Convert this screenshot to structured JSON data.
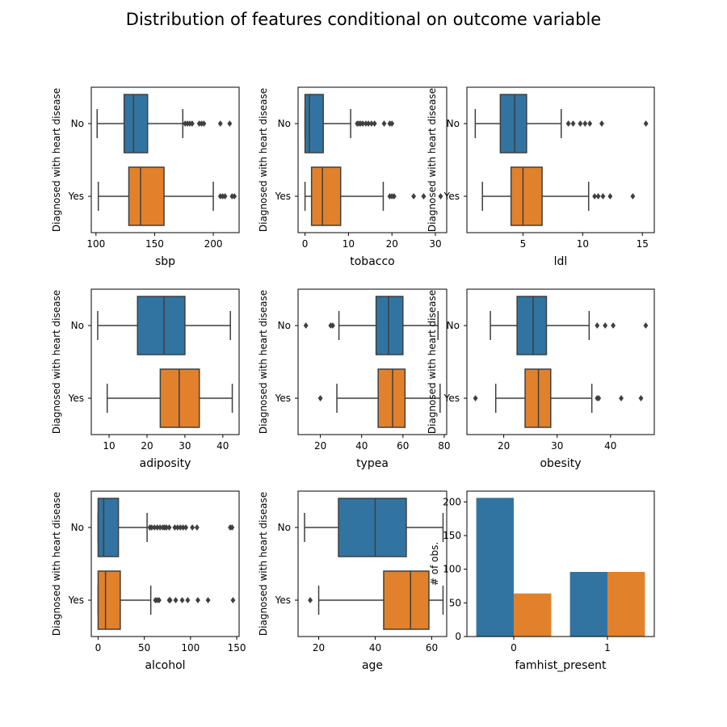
{
  "figure": {
    "title": "Distribution of features conditional on outcome variable",
    "colors": {
      "No": "#3274a1",
      "Yes": "#e1812c",
      "line": "#3f3f3f"
    }
  },
  "chart_data": [
    {
      "type": "box",
      "xlabel": "sbp",
      "ylabel": "Diagnosed with heart disease",
      "categories": [
        "No",
        "Yes"
      ],
      "xlim": [
        96,
        222
      ],
      "xticks": [
        100,
        150,
        200
      ],
      "boxes": [
        {
          "group": "No",
          "whislo": 101,
          "q1": 124,
          "med": 132,
          "q3": 144,
          "whishi": 174,
          "fliers": [
            176,
            178,
            180,
            182,
            188,
            190,
            192,
            206,
            214
          ]
        },
        {
          "group": "Yes",
          "whislo": 102,
          "q1": 128,
          "med": 138,
          "q3": 158,
          "whishi": 200,
          "fliers": [
            206,
            208,
            210,
            216,
            218
          ]
        }
      ]
    },
    {
      "type": "box",
      "xlabel": "tobacco",
      "ylabel": "Diagnosed with heart disease",
      "categories": [
        "No",
        "Yes"
      ],
      "xlim": [
        -1.6,
        32.6
      ],
      "xticks": [
        0,
        10,
        20,
        30
      ],
      "boxes": [
        {
          "group": "No",
          "whislo": 0,
          "q1": 0,
          "med": 1,
          "q3": 4.2,
          "whishi": 10.5,
          "fliers": [
            12,
            12.4,
            12.8,
            13.3,
            14,
            14.6,
            15.3,
            16,
            18.2,
            19.5,
            20
          ]
        },
        {
          "group": "Yes",
          "whislo": 0,
          "q1": 1.5,
          "med": 4,
          "q3": 8.2,
          "whishi": 18,
          "fliers": [
            19.5,
            20,
            20.5,
            25,
            27.3,
            31.2
          ]
        }
      ]
    },
    {
      "type": "box",
      "xlabel": "ldl",
      "ylabel": "Diagnosed with heart disease",
      "categories": [
        "No",
        "Yes"
      ],
      "xlim": [
        0.3,
        16.0
      ],
      "xticks": [
        5,
        10,
        15
      ],
      "boxes": [
        {
          "group": "No",
          "whislo": 1,
          "q1": 3.1,
          "med": 4.3,
          "q3": 5.3,
          "whishi": 8.2,
          "fliers": [
            8.8,
            9.2,
            9.8,
            10.2,
            10.6,
            11.6,
            15.3
          ]
        },
        {
          "group": "Yes",
          "whislo": 1.6,
          "q1": 4,
          "med": 5,
          "q3": 6.6,
          "whishi": 10.5,
          "fliers": [
            11,
            11.3,
            11.7,
            12.3,
            14.2
          ]
        }
      ]
    },
    {
      "type": "box",
      "xlabel": "adiposity",
      "ylabel": "Diagnosed with heart disease",
      "categories": [
        "No",
        "Yes"
      ],
      "xlim": [
        5.3,
        44.3
      ],
      "xticks": [
        10,
        20,
        30,
        40
      ],
      "boxes": [
        {
          "group": "No",
          "whislo": 7,
          "q1": 17.5,
          "med": 24.5,
          "q3": 30,
          "whishi": 42,
          "fliers": []
        },
        {
          "group": "Yes",
          "whislo": 9.5,
          "q1": 23.5,
          "med": 28.5,
          "q3": 33.8,
          "whishi": 42.5,
          "fliers": []
        }
      ]
    },
    {
      "type": "box",
      "xlabel": "typea",
      "ylabel": "Diagnosed with heart disease",
      "categories": [
        "No",
        "Yes"
      ],
      "xlim": [
        9.2,
        81.2
      ],
      "xticks": [
        20,
        40,
        60,
        80
      ],
      "boxes": [
        {
          "group": "No",
          "whislo": 29,
          "q1": 47,
          "med": 53,
          "q3": 60,
          "whishi": 77,
          "fliers": [
            13,
            25,
            26
          ]
        },
        {
          "group": "Yes",
          "whislo": 28,
          "q1": 48,
          "med": 55,
          "q3": 61,
          "whishi": 78,
          "fliers": [
            20
          ]
        }
      ]
    },
    {
      "type": "box",
      "xlabel": "obesity",
      "ylabel": "Diagnosed with heart disease",
      "categories": [
        "No",
        "Yes"
      ],
      "xlim": [
        13.1,
        48.2
      ],
      "xticks": [
        20,
        30,
        40
      ],
      "boxes": [
        {
          "group": "No",
          "whislo": 17.5,
          "q1": 22.5,
          "med": 25.5,
          "q3": 28,
          "whishi": 36,
          "fliers": [
            37.5,
            39,
            40.5,
            46.6
          ]
        },
        {
          "group": "Yes",
          "whislo": 18.5,
          "q1": 24,
          "med": 26.5,
          "q3": 28.8,
          "whishi": 36.5,
          "fliers": [
            14.7,
            37.5,
            37.8,
            42,
            45.7
          ]
        }
      ]
    },
    {
      "type": "box",
      "xlabel": "alcohol",
      "ylabel": "Diagnosed with heart disease",
      "categories": [
        "No",
        "Yes"
      ],
      "xlim": [
        -7.4,
        152.6
      ],
      "xticks": [
        0,
        50,
        100,
        150
      ],
      "boxes": [
        {
          "group": "No",
          "whislo": 0,
          "q1": 0,
          "med": 6,
          "q3": 22,
          "whishi": 53,
          "fliers": [
            56,
            58,
            61,
            64,
            67,
            70,
            72,
            74,
            77,
            83,
            86,
            89,
            92,
            95,
            102,
            107,
            143,
            145
          ]
        },
        {
          "group": "Yes",
          "whislo": 0,
          "q1": 0,
          "med": 8,
          "q3": 24,
          "whishi": 57,
          "fliers": [
            62,
            64,
            66,
            77,
            78,
            84,
            91,
            97,
            108,
            119,
            146
          ]
        }
      ]
    },
    {
      "type": "box",
      "xlabel": "age",
      "ylabel": "Diagnosed with heart disease",
      "categories": [
        "No",
        "Yes"
      ],
      "xlim": [
        12.7,
        65.3
      ],
      "xticks": [
        20,
        40,
        60
      ],
      "boxes": [
        {
          "group": "No",
          "whislo": 15,
          "q1": 27,
          "med": 40,
          "q3": 51,
          "whishi": 64,
          "fliers": []
        },
        {
          "group": "Yes",
          "whislo": 20,
          "q1": 43,
          "med": 52.5,
          "q3": 59,
          "whishi": 64,
          "fliers": [
            17
          ]
        }
      ]
    },
    {
      "type": "bar",
      "xlabel": "famhist_present",
      "ylabel": "# of obs.",
      "categories": [
        "0",
        "1"
      ],
      "ylim": [
        0,
        216
      ],
      "yticks": [
        0,
        50,
        100,
        150,
        200
      ],
      "series": [
        {
          "group": "No",
          "values": [
            206,
            96
          ]
        },
        {
          "group": "Yes",
          "values": [
            64,
            96
          ]
        }
      ]
    }
  ]
}
